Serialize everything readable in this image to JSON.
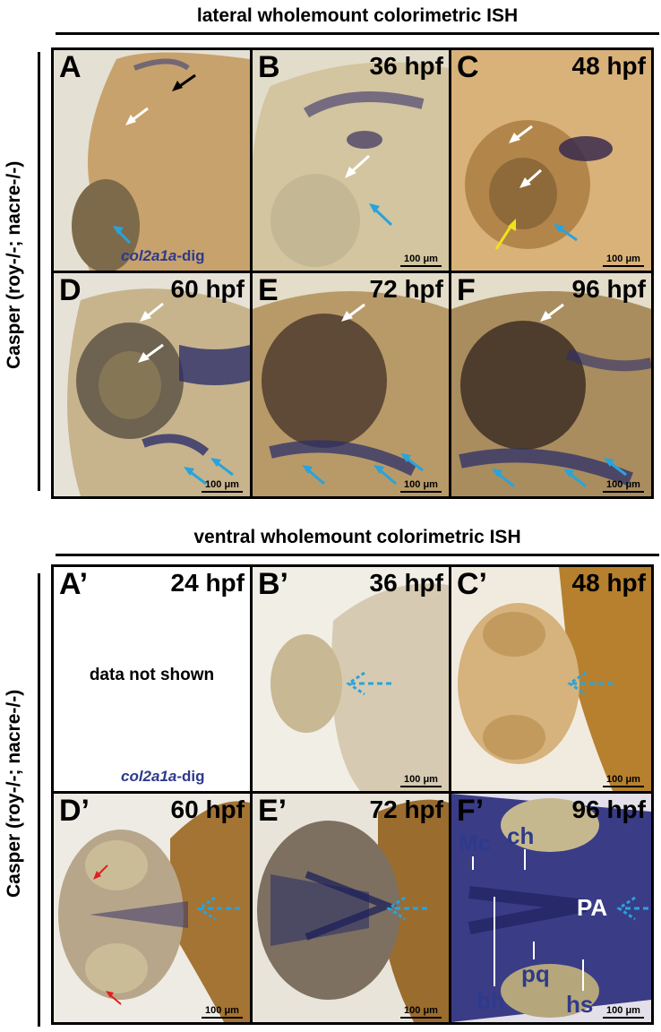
{
  "sections": {
    "lateral": {
      "title": "lateral wholemount colorimetric ISH",
      "side_label": "Casper (roy-/-; nacre-/-)"
    },
    "ventral": {
      "title": "ventral wholemount colorimetric ISH",
      "side_label": "Casper (roy-/-; nacre-/-)"
    }
  },
  "probe": {
    "gene": "col2a1a",
    "suffix": "-dig"
  },
  "scale_bar": "100 μm",
  "no_data_text": "data not shown",
  "lateral_panels": [
    {
      "label": "A",
      "stage": ""
    },
    {
      "label": "B",
      "stage": "36 hpf"
    },
    {
      "label": "C",
      "stage": "48 hpf"
    },
    {
      "label": "D",
      "stage": "60 hpf"
    },
    {
      "label": "E",
      "stage": "72 hpf"
    },
    {
      "label": "F",
      "stage": "96 hpf"
    }
  ],
  "ventral_panels": [
    {
      "label": "A’",
      "stage": "24 hpf"
    },
    {
      "label": "B’",
      "stage": "36 hpf"
    },
    {
      "label": "C’",
      "stage": "48 hpf"
    },
    {
      "label": "D’",
      "stage": "60 hpf"
    },
    {
      "label": "E’",
      "stage": "72 hpf"
    },
    {
      "label": "F’",
      "stage": "96 hpf"
    }
  ],
  "annotations": {
    "mc": "Mc",
    "ch": "ch",
    "pa": "PA",
    "bh": "bh",
    "pq": "pq",
    "hs": "hs"
  },
  "colors": {
    "stain": "#2e3a8c",
    "cyan_arrow": "#29a3dc",
    "yellow_arrow": "#f2e21a",
    "red_arrow": "#e02020",
    "tissue": "#c9a870"
  }
}
